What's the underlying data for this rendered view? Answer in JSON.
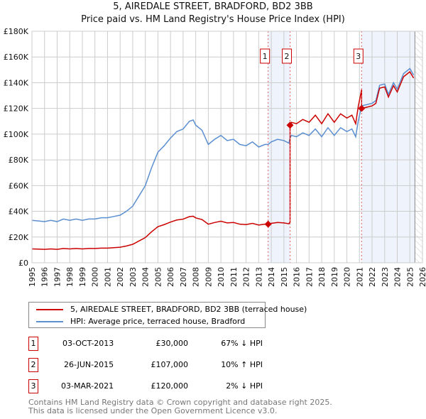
{
  "title": "5, AIREDALE STREET, BRADFORD, BD2 3BB",
  "subtitle": "Price paid vs. HM Land Registry's House Price Index (HPI)",
  "chart_data": {
    "type": "line",
    "xlim": [
      1995,
      2026
    ],
    "ylim": [
      0,
      180000
    ],
    "yticks": [
      0,
      20000,
      40000,
      60000,
      80000,
      100000,
      120000,
      140000,
      160000,
      180000
    ],
    "ytick_labels": [
      "£0",
      "£20K",
      "£40K",
      "£60K",
      "£80K",
      "£100K",
      "£120K",
      "£140K",
      "£160K",
      "£180K"
    ],
    "xticks": [
      1995,
      1996,
      1997,
      1998,
      1999,
      2000,
      2001,
      2002,
      2003,
      2004,
      2005,
      2006,
      2007,
      2008,
      2009,
      2010,
      2011,
      2012,
      2013,
      2014,
      2015,
      2016,
      2017,
      2018,
      2019,
      2020,
      2021,
      2022,
      2023,
      2024,
      2025,
      2026
    ],
    "grid": true,
    "series": [
      {
        "name": "5, AIREDALE STREET, BRADFORD, BD2 3BB (terraced house)",
        "color": "#cc0000",
        "derived": "hpi scaled from each sale"
      },
      {
        "name": "HPI: Average price, terraced house, Bradford",
        "color": "#5b8fd0",
        "x": [
          1995,
          1995.5,
          1996,
          1996.5,
          1997,
          1997.5,
          1998,
          1998.5,
          1999,
          1999.5,
          2000,
          2000.5,
          2001,
          2001.5,
          2002,
          2002.5,
          2003,
          2003.5,
          2004,
          2004.5,
          2005,
          2005.5,
          2006,
          2006.5,
          2007,
          2007.5,
          2007.8,
          2008,
          2008.5,
          2009,
          2009.5,
          2010,
          2010.5,
          2011,
          2011.5,
          2012,
          2012.5,
          2013,
          2013.5,
          2013.75,
          2014,
          2014.5,
          2015,
          2015.4,
          2015.49,
          2015.6,
          2016,
          2016.5,
          2017,
          2017.5,
          2018,
          2018.5,
          2019,
          2019.5,
          2020,
          2020.4,
          2020.7,
          2020.9,
          2021.17,
          2021.6,
          2022,
          2022.3,
          2022.6,
          2023,
          2023.3,
          2023.7,
          2024,
          2024.5,
          2025,
          2025.3
        ],
        "values": [
          33000,
          32500,
          32000,
          33000,
          32000,
          34000,
          33000,
          34000,
          33000,
          34000,
          34000,
          35000,
          35000,
          36000,
          37000,
          40000,
          44000,
          52000,
          60000,
          74000,
          86000,
          91000,
          97000,
          102000,
          104000,
          110000,
          111000,
          107000,
          103000,
          92000,
          96000,
          99000,
          95000,
          96000,
          92000,
          91000,
          94000,
          90000,
          92000,
          92000,
          94000,
          96000,
          95000,
          93000,
          97000,
          99000,
          98000,
          101000,
          99000,
          104000,
          98000,
          105000,
          99000,
          105000,
          102000,
          104000,
          98000,
          110000,
          122000,
          123000,
          124000,
          126000,
          138000,
          139000,
          131000,
          140000,
          135000,
          147000,
          151000,
          146000
        ]
      }
    ],
    "sales": [
      {
        "label": "1",
        "x": 2013.75,
        "price": 30000
      },
      {
        "label": "2",
        "x": 2015.49,
        "price": 107000
      },
      {
        "label": "3",
        "x": 2021.17,
        "price": 120000
      }
    ],
    "shaded": [
      [
        2013.75,
        2015.49
      ],
      [
        2021.17,
        2025.4
      ]
    ],
    "hatched_from": 2025.4
  },
  "legend": {
    "property": "5, AIREDALE STREET, BRADFORD, BD2 3BB (terraced house)",
    "hpi": "HPI: Average price, terraced house, Bradford"
  },
  "transactions": [
    {
      "num": "1",
      "date": "03-OCT-2013",
      "price": "£30,000",
      "hpi": "67% ↓ HPI"
    },
    {
      "num": "2",
      "date": "26-JUN-2015",
      "price": "£107,000",
      "hpi": "10% ↑ HPI"
    },
    {
      "num": "3",
      "date": "03-MAR-2021",
      "price": "£120,000",
      "hpi": "2% ↓ HPI"
    }
  ],
  "footer": {
    "line1": "Contains HM Land Registry data © Crown copyright and database right 2025.",
    "line2": "This data is licensed under the Open Government Licence v3.0."
  }
}
